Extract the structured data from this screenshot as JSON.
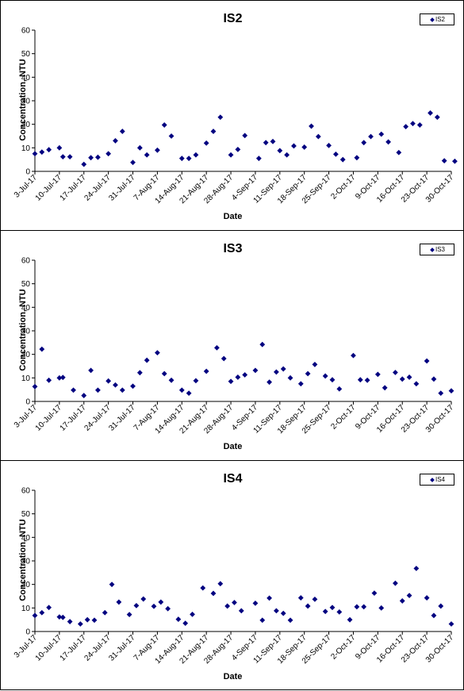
{
  "chart_data": [
    {
      "type": "scatter",
      "title": "IS2",
      "xlabel": "Date",
      "ylabel": "Concentration, NTU",
      "ylim": [
        0,
        60
      ],
      "yticks": [
        "0",
        "10",
        "20",
        "30",
        "40",
        "50",
        "60"
      ],
      "xlim": [
        "2017-07-03",
        "2017-10-30"
      ],
      "xticks": [
        "3-Jul-17",
        "10-Jul-17",
        "17-Jul-17",
        "24-Jul-17",
        "31-Jul-17",
        "7-Aug-17",
        "14-Aug-17",
        "21-Aug-17",
        "28-Aug-17",
        "4-Sep-17",
        "11-Sep-17",
        "18-Sep-17",
        "25-Sep-17",
        "2-Oct-17",
        "9-Oct-17",
        "16-Oct-17",
        "23-Oct-17",
        "30-Oct-17"
      ],
      "grid": false,
      "legend_position": "top-right",
      "color": "#000080",
      "series": [
        {
          "name": "IS2",
          "points": [
            [
              "2017-07-03",
              7.5
            ],
            [
              "2017-07-05",
              8.2
            ],
            [
              "2017-07-07",
              9.2
            ],
            [
              "2017-07-10",
              10.0
            ],
            [
              "2017-07-11",
              6.2
            ],
            [
              "2017-07-13",
              6.2
            ],
            [
              "2017-07-17",
              3.0
            ],
            [
              "2017-07-19",
              5.8
            ],
            [
              "2017-07-21",
              6.0
            ],
            [
              "2017-07-24",
              7.5
            ],
            [
              "2017-07-26",
              13.0
            ],
            [
              "2017-07-28",
              17.0
            ],
            [
              "2017-07-31",
              3.8
            ],
            [
              "2017-08-02",
              10.0
            ],
            [
              "2017-08-04",
              7.0
            ],
            [
              "2017-08-07",
              9.0
            ],
            [
              "2017-08-09",
              19.7
            ],
            [
              "2017-08-11",
              15.0
            ],
            [
              "2017-08-14",
              5.5
            ],
            [
              "2017-08-16",
              5.5
            ],
            [
              "2017-08-18",
              7.0
            ],
            [
              "2017-08-21",
              12.0
            ],
            [
              "2017-08-23",
              17.0
            ],
            [
              "2017-08-25",
              23.0
            ],
            [
              "2017-08-28",
              7.0
            ],
            [
              "2017-08-30",
              9.3
            ],
            [
              "2017-09-01",
              15.2
            ],
            [
              "2017-09-05",
              5.5
            ],
            [
              "2017-09-07",
              12.2
            ],
            [
              "2017-09-09",
              12.7
            ],
            [
              "2017-09-11",
              8.8
            ],
            [
              "2017-09-13",
              7.0
            ],
            [
              "2017-09-15",
              10.8
            ],
            [
              "2017-09-18",
              10.3
            ],
            [
              "2017-09-20",
              19.2
            ],
            [
              "2017-09-22",
              14.8
            ],
            [
              "2017-09-25",
              11.0
            ],
            [
              "2017-09-27",
              7.3
            ],
            [
              "2017-09-29",
              5.0
            ],
            [
              "2017-10-03",
              5.8
            ],
            [
              "2017-10-05",
              12.2
            ],
            [
              "2017-10-07",
              14.8
            ],
            [
              "2017-10-10",
              15.8
            ],
            [
              "2017-10-12",
              12.5
            ],
            [
              "2017-10-15",
              8.0
            ],
            [
              "2017-10-17",
              19.0
            ],
            [
              "2017-10-19",
              20.3
            ],
            [
              "2017-10-21",
              19.7
            ],
            [
              "2017-10-24",
              24.8
            ],
            [
              "2017-10-26",
              23.0
            ],
            [
              "2017-10-28",
              4.5
            ],
            [
              "2017-10-31",
              4.3
            ]
          ]
        }
      ]
    },
    {
      "type": "scatter",
      "title": "IS3",
      "xlabel": "Date",
      "ylabel": "Concentration, NTU",
      "ylim": [
        0,
        60
      ],
      "yticks": [
        "0",
        "10",
        "20",
        "30",
        "40",
        "50",
        "60"
      ],
      "xlim": [
        "2017-07-03",
        "2017-10-30"
      ],
      "xticks": [
        "3-Jul-17",
        "10-Jul-17",
        "17-Jul-17",
        "24-Jul-17",
        "31-Jul-17",
        "7-Aug-17",
        "14-Aug-17",
        "21-Aug-17",
        "28-Aug-17",
        "4-Sep-17",
        "11-Sep-17",
        "18-Sep-17",
        "25-Sep-17",
        "2-Oct-17",
        "9-Oct-17",
        "16-Oct-17",
        "23-Oct-17",
        "30-Oct-17"
      ],
      "grid": false,
      "legend_position": "top-right",
      "color": "#000080",
      "series": [
        {
          "name": "IS3",
          "points": [
            [
              "2017-07-03",
              6.3
            ],
            [
              "2017-07-05",
              22.2
            ],
            [
              "2017-07-07",
              9.0
            ],
            [
              "2017-07-10",
              10.0
            ],
            [
              "2017-07-11",
              10.2
            ],
            [
              "2017-07-14",
              4.8
            ],
            [
              "2017-07-17",
              2.5
            ],
            [
              "2017-07-19",
              13.2
            ],
            [
              "2017-07-21",
              4.8
            ],
            [
              "2017-07-24",
              8.7
            ],
            [
              "2017-07-26",
              7.0
            ],
            [
              "2017-07-28",
              4.8
            ],
            [
              "2017-07-31",
              6.5
            ],
            [
              "2017-08-02",
              12.2
            ],
            [
              "2017-08-04",
              17.5
            ],
            [
              "2017-08-07",
              20.7
            ],
            [
              "2017-08-09",
              11.8
            ],
            [
              "2017-08-11",
              9.0
            ],
            [
              "2017-08-14",
              4.8
            ],
            [
              "2017-08-16",
              3.5
            ],
            [
              "2017-08-18",
              8.8
            ],
            [
              "2017-08-21",
              12.8
            ],
            [
              "2017-08-24",
              22.8
            ],
            [
              "2017-08-26",
              18.2
            ],
            [
              "2017-08-28",
              8.5
            ],
            [
              "2017-08-30",
              10.3
            ],
            [
              "2017-09-01",
              11.3
            ],
            [
              "2017-09-04",
              13.2
            ],
            [
              "2017-09-06",
              24.2
            ],
            [
              "2017-09-08",
              8.2
            ],
            [
              "2017-09-10",
              12.5
            ],
            [
              "2017-09-12",
              13.8
            ],
            [
              "2017-09-14",
              10.0
            ],
            [
              "2017-09-17",
              7.5
            ],
            [
              "2017-09-19",
              11.8
            ],
            [
              "2017-09-21",
              15.7
            ],
            [
              "2017-09-24",
              10.8
            ],
            [
              "2017-09-26",
              9.2
            ],
            [
              "2017-09-28",
              5.3
            ],
            [
              "2017-10-02",
              19.5
            ],
            [
              "2017-10-04",
              9.2
            ],
            [
              "2017-10-06",
              9.0
            ],
            [
              "2017-10-09",
              11.5
            ],
            [
              "2017-10-11",
              5.8
            ],
            [
              "2017-10-14",
              12.3
            ],
            [
              "2017-10-16",
              9.5
            ],
            [
              "2017-10-18",
              10.3
            ],
            [
              "2017-10-20",
              7.5
            ],
            [
              "2017-10-23",
              17.2
            ],
            [
              "2017-10-25",
              9.5
            ],
            [
              "2017-10-27",
              3.5
            ],
            [
              "2017-10-30",
              4.5
            ]
          ]
        }
      ]
    },
    {
      "type": "scatter",
      "title": "IS4",
      "xlabel": "Date",
      "ylabel": "Concentration, NTU",
      "ylim": [
        0,
        60
      ],
      "yticks": [
        "0",
        "10",
        "20",
        "30",
        "40",
        "50",
        "60"
      ],
      "xlim": [
        "2017-07-03",
        "2017-10-30"
      ],
      "xticks": [
        "3-Jul-17",
        "10-Jul-17",
        "17-Jul-17",
        "24-Jul-17",
        "31-Jul-17",
        "7-Aug-17",
        "14-Aug-17",
        "21-Aug-17",
        "28-Aug-17",
        "4-Sep-17",
        "11-Sep-17",
        "18-Sep-17",
        "25-Sep-17",
        "2-Oct-17",
        "9-Oct-17",
        "16-Oct-17",
        "23-Oct-17",
        "30-Oct-17"
      ],
      "grid": false,
      "legend_position": "top-right",
      "color": "#000080",
      "series": [
        {
          "name": "IS4",
          "points": [
            [
              "2017-07-03",
              6.8
            ],
            [
              "2017-07-05",
              8.0
            ],
            [
              "2017-07-07",
              10.2
            ],
            [
              "2017-07-10",
              6.2
            ],
            [
              "2017-07-11",
              6.0
            ],
            [
              "2017-07-13",
              4.2
            ],
            [
              "2017-07-16",
              3.2
            ],
            [
              "2017-07-18",
              5.0
            ],
            [
              "2017-07-20",
              4.8
            ],
            [
              "2017-07-23",
              8.0
            ],
            [
              "2017-07-25",
              20.0
            ],
            [
              "2017-07-27",
              12.5
            ],
            [
              "2017-07-30",
              7.2
            ],
            [
              "2017-08-01",
              11.0
            ],
            [
              "2017-08-03",
              13.8
            ],
            [
              "2017-08-06",
              10.7
            ],
            [
              "2017-08-08",
              12.5
            ],
            [
              "2017-08-10",
              9.7
            ],
            [
              "2017-08-13",
              5.2
            ],
            [
              "2017-08-15",
              3.5
            ],
            [
              "2017-08-17",
              7.3
            ],
            [
              "2017-08-20",
              18.5
            ],
            [
              "2017-08-23",
              16.2
            ],
            [
              "2017-08-25",
              20.3
            ],
            [
              "2017-08-27",
              10.8
            ],
            [
              "2017-08-29",
              12.3
            ],
            [
              "2017-08-31",
              8.8
            ],
            [
              "2017-09-04",
              12.0
            ],
            [
              "2017-09-06",
              4.8
            ],
            [
              "2017-09-08",
              14.2
            ],
            [
              "2017-09-10",
              8.8
            ],
            [
              "2017-09-12",
              7.7
            ],
            [
              "2017-09-14",
              4.8
            ],
            [
              "2017-09-17",
              14.3
            ],
            [
              "2017-09-19",
              10.8
            ],
            [
              "2017-09-21",
              13.7
            ],
            [
              "2017-09-24",
              8.5
            ],
            [
              "2017-09-26",
              10.2
            ],
            [
              "2017-09-28",
              8.3
            ],
            [
              "2017-10-01",
              5.0
            ],
            [
              "2017-10-03",
              10.5
            ],
            [
              "2017-10-05",
              10.5
            ],
            [
              "2017-10-08",
              16.3
            ],
            [
              "2017-10-10",
              10.0
            ],
            [
              "2017-10-14",
              20.5
            ],
            [
              "2017-10-16",
              13.0
            ],
            [
              "2017-10-18",
              15.3
            ],
            [
              "2017-10-20",
              26.8
            ],
            [
              "2017-10-23",
              14.3
            ],
            [
              "2017-10-25",
              6.8
            ],
            [
              "2017-10-27",
              10.8
            ],
            [
              "2017-10-30",
              3.2
            ]
          ]
        }
      ]
    }
  ]
}
